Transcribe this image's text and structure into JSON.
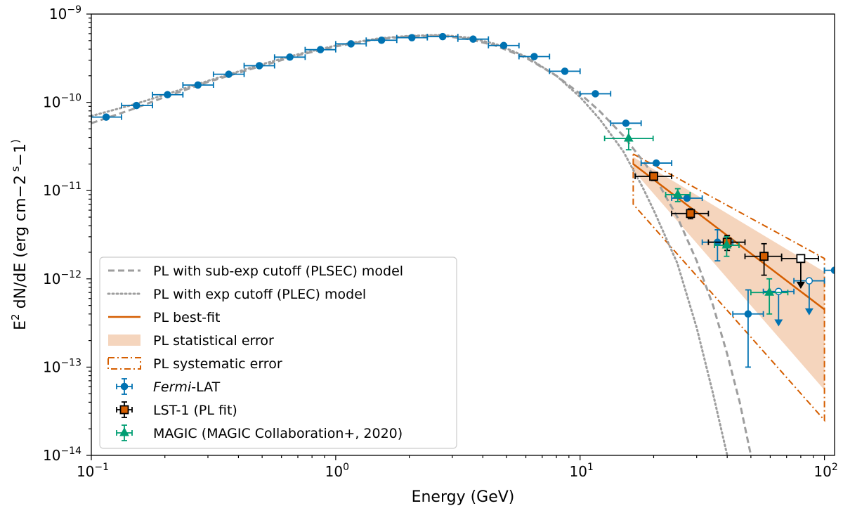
{
  "chart_data": {
    "type": "scatter",
    "xlabel": "Energy (GeV)",
    "ylabel_parts": [
      "E",
      "2",
      " dN/dE (erg cm",
      "−2",
      " s",
      "−1",
      ")"
    ],
    "xscale": "log",
    "yscale": "log",
    "xlim": [
      0.1,
      110
    ],
    "ylim": [
      1e-14,
      1e-09
    ],
    "x_tick_labels": [
      {
        "value": 0.1,
        "base": "10",
        "exp": "−1"
      },
      {
        "value": 1,
        "base": "10",
        "exp": "0"
      },
      {
        "value": 10,
        "base": "10",
        "exp": "1"
      },
      {
        "value": 100,
        "base": "10",
        "exp": "2"
      }
    ],
    "y_tick_labels": [
      {
        "value": 1e-14,
        "base": "10",
        "exp": "−14"
      },
      {
        "value": 1e-13,
        "base": "10",
        "exp": "−13"
      },
      {
        "value": 1e-12,
        "base": "10",
        "exp": "−12"
      },
      {
        "value": 1e-11,
        "base": "10",
        "exp": "−11"
      },
      {
        "value": 1e-10,
        "base": "10",
        "exp": "−10"
      },
      {
        "value": 1e-09,
        "base": "10",
        "exp": "−9"
      }
    ],
    "legend": {
      "placement": "lower-left",
      "entries": [
        {
          "key": "plsec",
          "label": "PL with sub-exp cutoff (PLSEC) model"
        },
        {
          "key": "plec",
          "label": "PL with exp cutoff (PLEC) model"
        },
        {
          "key": "pl",
          "label": "PL best-fit"
        },
        {
          "key": "stat",
          "label": "PL statistical error"
        },
        {
          "key": "syst",
          "label": "PL systematic error"
        },
        {
          "key": "fermi",
          "label_italic": "Fermi",
          "label": "-LAT"
        },
        {
          "key": "lst",
          "label": "LST-1 (PL fit)"
        },
        {
          "key": "magic",
          "label": "MAGIC (MAGIC Collaboration+, 2020)"
        }
      ]
    },
    "colors": {
      "fermi": "#0072b2",
      "lst_fill": "#d55e00",
      "lst_edge": "#000000",
      "magic": "#009e73",
      "pl": "#d55e00",
      "stat_band": "#f5d5bd",
      "model": "#9e9e9e",
      "axis": "#000000"
    },
    "models": {
      "plsec": {
        "name": "PL with sub-exp cutoff (PLSEC) model",
        "x": [
          0.1,
          0.15,
          0.2,
          0.3,
          0.5,
          0.7,
          1.0,
          1.5,
          2.0,
          2.7,
          3.5,
          4.5,
          6.0,
          8.0,
          10.0,
          12.0,
          15.0,
          18.0,
          20.0,
          25.0,
          30.0,
          35.0,
          40.0,
          45.0,
          50.0
        ],
        "y": [
          5.8e-11,
          8.5e-11,
          1.15e-10,
          1.7e-10,
          2.6e-10,
          3.4e-10,
          4.3e-10,
          5.2e-10,
          5.6e-10,
          5.7e-10,
          5.2e-10,
          4.4e-10,
          3.2e-10,
          2e-10,
          1.25e-10,
          8e-11,
          4.2e-11,
          2.2e-11,
          1.5e-11,
          5e-12,
          1.6e-12,
          5e-13,
          1.4e-13,
          4e-14,
          1e-14
        ]
      },
      "plec": {
        "name": "PL with exp cutoff (PLEC) model",
        "x": [
          0.1,
          0.15,
          0.2,
          0.3,
          0.5,
          0.7,
          1.0,
          1.5,
          2.0,
          2.7,
          3.5,
          4.5,
          6.0,
          8.0,
          10.0,
          12.0,
          15.0,
          18.0,
          20.0,
          25.0,
          30.0,
          35.0,
          40.0
        ],
        "y": [
          7e-11,
          9.5e-11,
          1.22e-10,
          1.75e-10,
          2.7e-10,
          3.5e-10,
          4.4e-10,
          5.3e-10,
          5.65e-10,
          5.8e-10,
          5.4e-10,
          4.6e-10,
          3.3e-10,
          2e-10,
          1.15e-10,
          6.5e-11,
          2.8e-11,
          1.1e-11,
          6e-12,
          1.5e-12,
          2.8e-13,
          5e-14,
          1e-14
        ]
      }
    },
    "pl_fit": {
      "x": [
        16.5,
        100
      ],
      "y": [
        2e-11,
        4.5e-13
      ],
      "stat_band": {
        "x": [
          16.5,
          100
        ],
        "upper": [
          2.4e-11,
          1.2e-12
        ],
        "lower": [
          1.7e-11,
          5.5e-14
        ]
      },
      "syst_band": {
        "x": [
          16.5,
          100
        ],
        "upper": [
          2.6e-11,
          1.7e-12
        ],
        "lower": [
          7e-12,
          2.5e-14
        ]
      }
    },
    "series": [
      {
        "name": "Fermi-LAT",
        "key": "fermi",
        "marker": "circle",
        "points": [
          {
            "x": 0.115,
            "y": 6.8e-11,
            "xlo": 0.1,
            "xhi": 0.133
          },
          {
            "x": 0.153,
            "y": 9.2e-11,
            "xlo": 0.133,
            "xhi": 0.178
          },
          {
            "x": 0.205,
            "y": 1.22e-10,
            "xlo": 0.178,
            "xhi": 0.237
          },
          {
            "x": 0.273,
            "y": 1.57e-10,
            "xlo": 0.237,
            "xhi": 0.316
          },
          {
            "x": 0.365,
            "y": 2.08e-10,
            "xlo": 0.316,
            "xhi": 0.422
          },
          {
            "x": 0.487,
            "y": 2.6e-10,
            "xlo": 0.422,
            "xhi": 0.562
          },
          {
            "x": 0.649,
            "y": 3.25e-10,
            "xlo": 0.562,
            "xhi": 0.75
          },
          {
            "x": 0.866,
            "y": 3.95e-10,
            "xlo": 0.75,
            "xhi": 1.0
          },
          {
            "x": 1.155,
            "y": 4.6e-10,
            "xlo": 1.0,
            "xhi": 1.333
          },
          {
            "x": 1.54,
            "y": 5.05e-10,
            "xlo": 1.333,
            "xhi": 1.778
          },
          {
            "x": 2.05,
            "y": 5.4e-10,
            "xlo": 1.778,
            "xhi": 2.371
          },
          {
            "x": 2.74,
            "y": 5.55e-10,
            "xlo": 2.371,
            "xhi": 3.162
          },
          {
            "x": 3.65,
            "y": 5.2e-10,
            "xlo": 3.162,
            "xhi": 4.217
          },
          {
            "x": 4.87,
            "y": 4.4e-10,
            "xlo": 4.217,
            "xhi": 5.623
          },
          {
            "x": 6.49,
            "y": 3.3e-10,
            "xlo": 5.623,
            "xhi": 7.499
          },
          {
            "x": 8.66,
            "y": 2.25e-10,
            "xlo": 7.499,
            "xhi": 10.0
          },
          {
            "x": 11.55,
            "y": 1.25e-10,
            "xlo": 10.0,
            "xhi": 13.34
          },
          {
            "x": 15.4,
            "y": 5.8e-11,
            "xlo": 13.34,
            "xhi": 17.78
          },
          {
            "x": 20.5,
            "y": 2.05e-11,
            "xlo": 17.78,
            "xhi": 23.71
          },
          {
            "x": 27.4,
            "y": 8.2e-12,
            "xlo": 23.71,
            "xhi": 31.62
          },
          {
            "x": 36.5,
            "y": 2.6e-12,
            "xlo": 31.62,
            "xhi": 42.17,
            "ylo": 1.6e-12,
            "yhi": 3.6e-12
          },
          {
            "x": 48.7,
            "y": 4e-13,
            "xlo": 42.17,
            "xhi": 56.23,
            "ylo": 1e-13,
            "yhi": 7.5e-13
          },
          {
            "x": 64.9,
            "y": 7.2e-13,
            "xlo": 56.23,
            "xhi": 74.99,
            "upper_limit": true,
            "arrow_to": 3e-13,
            "open": true
          },
          {
            "x": 86.6,
            "y": 9.5e-13,
            "xlo": 74.99,
            "xhi": 100.0,
            "upper_limit": true,
            "arrow_to": 4e-13,
            "open": true
          },
          {
            "x": 110.0,
            "y": 1.25e-12,
            "xlo": 100.0,
            "xhi": 120.0
          }
        ]
      },
      {
        "name": "LST-1 (PL fit)",
        "key": "lst",
        "marker": "square",
        "points": [
          {
            "x": 20.0,
            "y": 1.45e-11,
            "xlo": 16.8,
            "xhi": 23.7,
            "ylo": 1.3e-11,
            "yhi": 1.6e-11
          },
          {
            "x": 28.3,
            "y": 5.5e-12,
            "xlo": 23.7,
            "xhi": 33.5,
            "ylo": 4.8e-12,
            "yhi": 6.2e-12
          },
          {
            "x": 40.0,
            "y": 2.6e-12,
            "xlo": 33.5,
            "xhi": 47.3,
            "ylo": 2.1e-12,
            "yhi": 3.1e-12
          },
          {
            "x": 56.6,
            "y": 1.8e-12,
            "xlo": 47.3,
            "xhi": 66.8,
            "ylo": 1.1e-12,
            "yhi": 2.5e-12
          },
          {
            "x": 80.0,
            "y": 1.7e-12,
            "xlo": 66.8,
            "xhi": 94.5,
            "upper_limit": true,
            "arrow_to": 8e-13,
            "open": true
          }
        ]
      },
      {
        "name": "MAGIC (MAGIC Collaboration+, 2020)",
        "key": "magic",
        "marker": "triangle",
        "points": [
          {
            "x": 15.8,
            "y": 3.9e-11,
            "xlo": 12.6,
            "xhi": 19.9,
            "ylo": 2.9e-11,
            "yhi": 5e-11
          },
          {
            "x": 25.1,
            "y": 9e-12,
            "xlo": 22.4,
            "xhi": 28.2,
            "ylo": 7.5e-12,
            "yhi": 1.05e-11
          },
          {
            "x": 39.8,
            "y": 2.4e-12,
            "xlo": 35.5,
            "xhi": 44.7,
            "ylo": 1.8e-12,
            "yhi": 3e-12
          },
          {
            "x": 59.5,
            "y": 7e-13,
            "xlo": 50.0,
            "xhi": 70.8,
            "ylo": 4e-13,
            "yhi": 1e-12
          }
        ]
      }
    ]
  }
}
